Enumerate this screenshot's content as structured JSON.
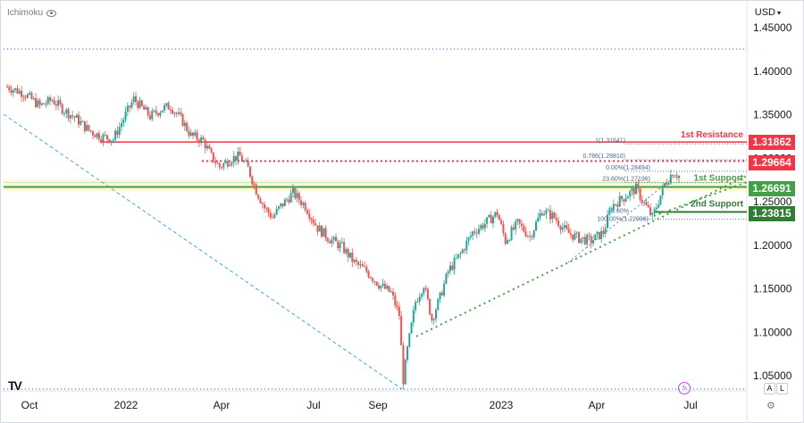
{
  "header": {
    "indicator": "Ichimoku",
    "currency": "USD"
  },
  "axis": {
    "y_ticks": [
      "1.45000",
      "1.40000",
      "1.35000",
      "1.30000",
      "1.25000",
      "1.20000",
      "1.15000",
      "1.10000",
      "1.05000"
    ],
    "x_ticks": [
      "Oct",
      "2022",
      "Apr",
      "Jul",
      "Sep",
      "2023",
      "Apr",
      "Jul"
    ]
  },
  "levels": {
    "resistance": {
      "label": "1st Resistance",
      "price": "1.31862",
      "color": "#f23645"
    },
    "mid": {
      "price": "1.29664",
      "color": "#f23645"
    },
    "support1": {
      "label": "1st Support",
      "price": "1.26691",
      "color": "#43a047"
    },
    "support2": {
      "label": "2nd Support",
      "price": "1.23815",
      "color": "#2e7d32"
    }
  },
  "fib_labels": [
    "1(1.31641)",
    "0.786(1.29810)",
    "0.00%(1.28494)",
    "23.60%(1.27196)",
    "78.60%",
    "100.00%(1.22996)"
  ],
  "controls": {
    "auto": "A",
    "log": "L"
  },
  "chart_data": {
    "type": "candlestick",
    "symbol": "",
    "y_range": [
      1.035,
      1.465
    ],
    "x_ticks": [
      "Oct",
      "2022",
      "Apr",
      "Jul",
      "Sep",
      "2023",
      "Apr",
      "Jul"
    ],
    "trend_path": [
      [
        0,
        1.382
      ],
      [
        8,
        1.375
      ],
      [
        16,
        1.36
      ],
      [
        22,
        1.367
      ],
      [
        28,
        1.355
      ],
      [
        34,
        1.345
      ],
      [
        40,
        1.332
      ],
      [
        46,
        1.325
      ],
      [
        52,
        1.322
      ],
      [
        58,
        1.35
      ],
      [
        62,
        1.368
      ],
      [
        70,
        1.348
      ],
      [
        76,
        1.357
      ],
      [
        80,
        1.36
      ],
      [
        86,
        1.342
      ],
      [
        90,
        1.326
      ],
      [
        96,
        1.32
      ],
      [
        100,
        1.302
      ],
      [
        104,
        1.29
      ],
      [
        110,
        1.3
      ],
      [
        114,
        1.302
      ],
      [
        118,
        1.288
      ],
      [
        122,
        1.263
      ],
      [
        126,
        1.243
      ],
      [
        130,
        1.232
      ],
      [
        134,
        1.245
      ],
      [
        140,
        1.26
      ],
      [
        146,
        1.245
      ],
      [
        152,
        1.22
      ],
      [
        158,
        1.207
      ],
      [
        164,
        1.198
      ],
      [
        170,
        1.18
      ],
      [
        176,
        1.17
      ],
      [
        182,
        1.155
      ],
      [
        188,
        1.145
      ],
      [
        192,
        1.12
      ],
      [
        194,
        1.045
      ],
      [
        196,
        1.08
      ],
      [
        200,
        1.135
      ],
      [
        204,
        1.155
      ],
      [
        208,
        1.115
      ],
      [
        212,
        1.14
      ],
      [
        216,
        1.17
      ],
      [
        222,
        1.19
      ],
      [
        228,
        1.215
      ],
      [
        234,
        1.225
      ],
      [
        240,
        1.237
      ],
      [
        244,
        1.205
      ],
      [
        250,
        1.225
      ],
      [
        256,
        1.21
      ],
      [
        262,
        1.24
      ],
      [
        268,
        1.232
      ],
      [
        274,
        1.215
      ],
      [
        280,
        1.208
      ],
      [
        286,
        1.205
      ],
      [
        292,
        1.215
      ],
      [
        296,
        1.245
      ],
      [
        302,
        1.255
      ],
      [
        308,
        1.265
      ],
      [
        312,
        1.248
      ],
      [
        316,
        1.232
      ],
      [
        322,
        1.27
      ],
      [
        326,
        1.284
      ],
      [
        330,
        1.278
      ]
    ],
    "candle_count": 330,
    "levels": [
      1.31862,
      1.29664,
      1.26691,
      1.23815
    ],
    "series": []
  }
}
